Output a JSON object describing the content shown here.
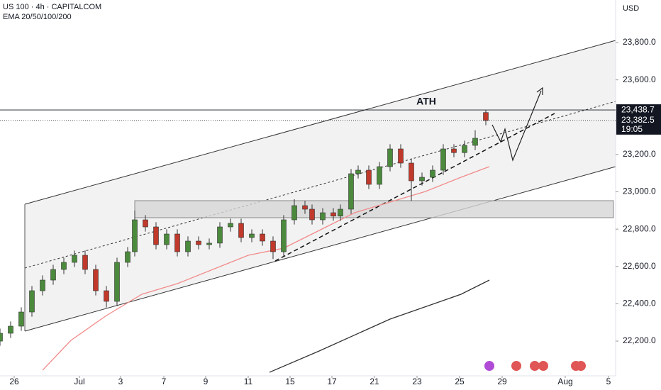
{
  "chart_data": {
    "type": "candlestick",
    "title": "US 100 · 4h · CAPITALCOM",
    "subtitle": "EMA 20/50/100/200",
    "y_axis_label": "USD",
    "annotation": "ATH",
    "countdown": "19:05",
    "up_color": "#4b8a3c",
    "down_color": "#c0392b",
    "xlim": [
      0,
      173.6
    ],
    "ylim": [
      22014,
      24028
    ],
    "xticks": [
      {
        "value": 4,
        "label": "26"
      },
      {
        "value": 22.4,
        "label": "Jul"
      },
      {
        "value": 34,
        "label": "3"
      },
      {
        "value": 46.2,
        "label": "7"
      },
      {
        "value": 58,
        "label": "9"
      },
      {
        "value": 70,
        "label": "11"
      },
      {
        "value": 81.8,
        "label": "15"
      },
      {
        "value": 93.6,
        "label": "17"
      },
      {
        "value": 105.6,
        "label": "21"
      },
      {
        "value": 117.6,
        "label": "23"
      },
      {
        "value": 129.6,
        "label": "25"
      },
      {
        "value": 141.6,
        "label": "29"
      },
      {
        "value": 159.4,
        "label": "Aug"
      },
      {
        "value": 171.6,
        "label": "5"
      }
    ],
    "yticks": [
      {
        "value": 22200,
        "label": "22,200.0"
      },
      {
        "value": 22400,
        "label": "22,400.0"
      },
      {
        "value": 22600,
        "label": "22,600.0"
      },
      {
        "value": 22800,
        "label": "22,800.0"
      },
      {
        "value": 23000,
        "label": "23,000.0"
      },
      {
        "value": 23200,
        "label": "23,200.0"
      },
      {
        "value": 23600,
        "label": "23,600.0"
      },
      {
        "value": 23800,
        "label": "23,800.0"
      }
    ],
    "price_labels": [
      {
        "value": 23438.7,
        "label": "23,438.7",
        "color": "#131722"
      },
      {
        "value": 23382.5,
        "label": "23,382.5",
        "color": "#131722"
      }
    ],
    "x": [
      0,
      3,
      6,
      9,
      12,
      15,
      18,
      21,
      24,
      27,
      30,
      33,
      36,
      38,
      41,
      44,
      47,
      50,
      53,
      56,
      59,
      62,
      65,
      68,
      71,
      74,
      77,
      80,
      83,
      86,
      88,
      91,
      94,
      96,
      99,
      101,
      104,
      107,
      110,
      113,
      116,
      119,
      122,
      125,
      128,
      131,
      134,
      137
    ],
    "open": [
      22200,
      22242,
      22280,
      22356,
      22470,
      22527,
      22584,
      22622,
      22660,
      22584,
      22470,
      22413,
      22622,
      22679,
      22850,
      22812,
      22717,
      22774,
      22679,
      22736,
      22717,
      22725,
      22812,
      22831,
      22755,
      22774,
      22736,
      22679,
      22850,
      22926,
      22907,
      22850,
      22888,
      22870,
      22907,
      23097,
      23116,
      23040,
      23135,
      23230,
      23154,
      23059,
      23078,
      23116,
      23230,
      23210,
      23249,
      23425
    ],
    "high": [
      22267,
      22305,
      22381,
      22495,
      22552,
      22609,
      22647,
      22685,
      22685,
      22609,
      22495,
      22647,
      22704,
      22900,
      22875,
      22837,
      22799,
      22799,
      22761,
      22761,
      22750,
      22837,
      22856,
      22856,
      22799,
      22799,
      22761,
      22875,
      22960,
      22951,
      22932,
      22913,
      22913,
      22932,
      23122,
      23141,
      23141,
      23160,
      23255,
      23255,
      23179,
      23103,
      23141,
      23255,
      23255,
      23274,
      23330,
      23438.7
    ],
    "low": [
      22175,
      22217,
      22255,
      22331,
      22445,
      22502,
      22559,
      22597,
      22559,
      22445,
      22380,
      22388,
      22597,
      22654,
      22787,
      22692,
      22692,
      22654,
      22654,
      22692,
      22692,
      22700,
      22787,
      22730,
      22730,
      22711,
      22640,
      22654,
      22825,
      22882,
      22825,
      22825,
      22845,
      22845,
      22882,
      23072,
      23015,
      23015,
      23110,
      23129,
      22950,
      23034,
      23053,
      23091,
      23185,
      23185,
      23224,
      23357
    ],
    "close": [
      22242,
      22280,
      22356,
      22470,
      22527,
      22584,
      22622,
      22660,
      22584,
      22470,
      22413,
      22622,
      22679,
      22850,
      22812,
      22717,
      22774,
      22679,
      22736,
      22717,
      22725,
      22812,
      22831,
      22755,
      22774,
      22736,
      22679,
      22850,
      22926,
      22907,
      22850,
      22888,
      22870,
      22907,
      23097,
      23116,
      23040,
      23135,
      23230,
      23154,
      23059,
      23078,
      23116,
      23230,
      23210,
      23249,
      23287,
      23382.5
    ],
    "series": [
      {
        "name": "EMA 50",
        "color": "#f28b8b",
        "x": [
          12,
          20,
          30,
          40,
          50,
          60,
          70,
          80,
          90,
          100,
          110,
          120,
          130,
          138
        ],
        "values": [
          22044,
          22204,
          22337,
          22451,
          22508,
          22584,
          22660,
          22698,
          22793,
          22888,
          22945,
          23002,
          23078,
          23135
        ]
      },
      {
        "name": "EMA 200",
        "color": "#333333",
        "x": [
          76,
          90,
          110,
          130,
          138
        ],
        "values": [
          22033,
          22147,
          22318,
          22451,
          22527
        ]
      }
    ]
  }
}
